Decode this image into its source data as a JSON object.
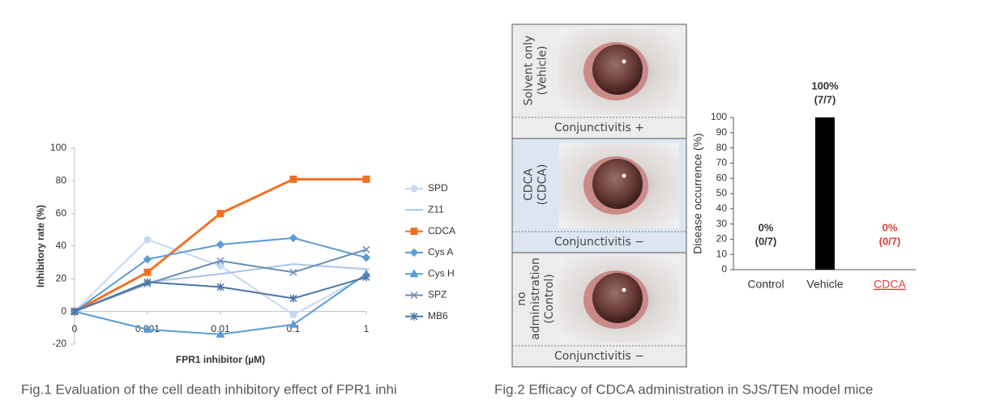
{
  "chart_data": [
    {
      "type": "line",
      "caption": "Fig.1 Evaluation of the cell death inhibitory effect of FPR1 inhi",
      "x_label": "FPR1 inhibitor (µM)",
      "y_label": "Inhibitory rate (%)",
      "categories": [
        "0",
        "0.001",
        "0.01",
        "0.1",
        "1"
      ],
      "ylim": [
        -20,
        100
      ],
      "yticks": [
        -20,
        0,
        20,
        40,
        60,
        80,
        100
      ],
      "series": [
        {
          "name": "SPD",
          "color": "#c6d9f0",
          "marker": "circle",
          "values": [
            0,
            44,
            28,
            -2,
            22
          ]
        },
        {
          "name": "Z11",
          "color": "#a9c6e8",
          "marker": "dash",
          "values": [
            0,
            18,
            23,
            29,
            26
          ]
        },
        {
          "name": "CDCA",
          "color": "#f07021",
          "marker": "square",
          "values": [
            0,
            24,
            60,
            81,
            81
          ]
        },
        {
          "name": "Cys A",
          "color": "#5b9bd5",
          "marker": "diamond",
          "values": [
            0,
            32,
            41,
            45,
            33
          ]
        },
        {
          "name": "Cys H",
          "color": "#5a9bd6",
          "marker": "triangle",
          "values": [
            0,
            -11,
            -14,
            -8,
            23
          ]
        },
        {
          "name": "SPZ",
          "color": "#6a8db8",
          "marker": "x",
          "values": [
            0,
            17,
            31,
            24,
            38
          ]
        },
        {
          "name": "MB6",
          "color": "#4a74a8",
          "marker": "star",
          "values": [
            0,
            18,
            15,
            8,
            21
          ]
        }
      ]
    },
    {
      "type": "bar",
      "caption": "Fig.2 Efficacy of CDCA administration in SJS/TEN model mice",
      "y_label": "Disease occurrence (%)",
      "categories": [
        "Control",
        "Vehicle",
        "CDCA"
      ],
      "category_colors": [
        "#333333",
        "#333333",
        "#e03c3c"
      ],
      "values": [
        0,
        100,
        0
      ],
      "value_labels": [
        "0%",
        "100%",
        "0%"
      ],
      "counts": [
        "(0/7)",
        "(7/7)",
        "(0/7)"
      ],
      "label_colors": [
        "#333333",
        "#333333",
        "#e03c3c"
      ],
      "color": "#000000",
      "ylim": [
        0,
        100
      ],
      "yticks": [
        0,
        10,
        20,
        30,
        40,
        50,
        60,
        70,
        80,
        90,
        100
      ]
    }
  ],
  "photo_panels": [
    {
      "label": [
        "Solvent only",
        "(Vehicle)"
      ],
      "result": "Conjunctivitis +"
    },
    {
      "label": [
        "CDCA",
        "(CDCA)"
      ],
      "result": "Conjunctivitis −"
    },
    {
      "label": [
        "no",
        "administration",
        "(Control)"
      ],
      "result": "Conjunctivitis −"
    }
  ]
}
